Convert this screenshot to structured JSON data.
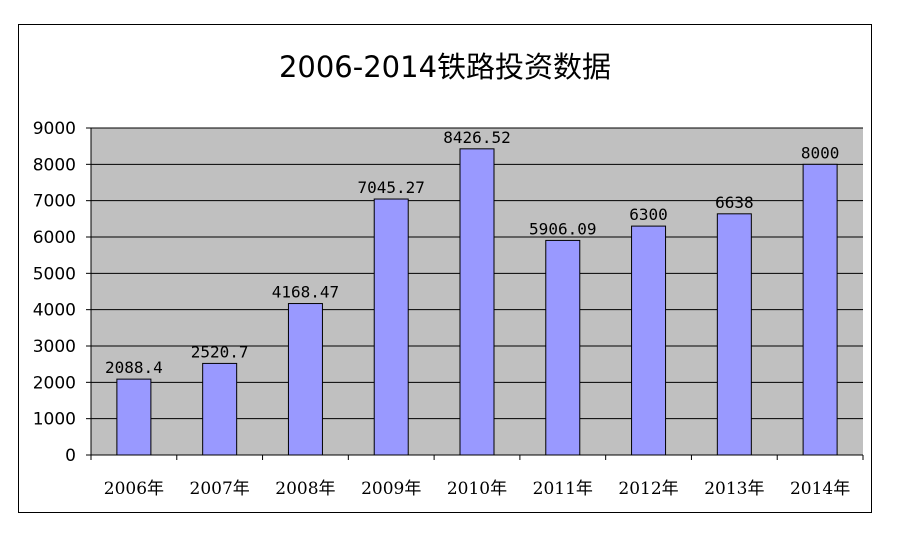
{
  "chart_data": {
    "type": "bar",
    "title": "2006-2014铁路投资数据",
    "categories": [
      "2006年",
      "2007年",
      "2008年",
      "2009年",
      "2010年",
      "2011年",
      "2012年",
      "2013年",
      "2014年"
    ],
    "values": [
      2088.4,
      2520.7,
      4168.47,
      7045.27,
      8426.52,
      5906.09,
      6300,
      6638,
      8000
    ],
    "data_labels": [
      "2088.4",
      "2520.7",
      "4168.47",
      "7045.27",
      "8426.52",
      "5906.09",
      "6300",
      "6638",
      "8000"
    ],
    "ylim": [
      0,
      9000
    ],
    "yticks": [
      "0",
      "1000",
      "2000",
      "3000",
      "4000",
      "5000",
      "6000",
      "7000",
      "8000",
      "9000"
    ],
    "grid": true,
    "colors": {
      "bar": "#9999ff",
      "plot_bg": "#c0c0c0",
      "bar_edge": "#000000"
    }
  }
}
